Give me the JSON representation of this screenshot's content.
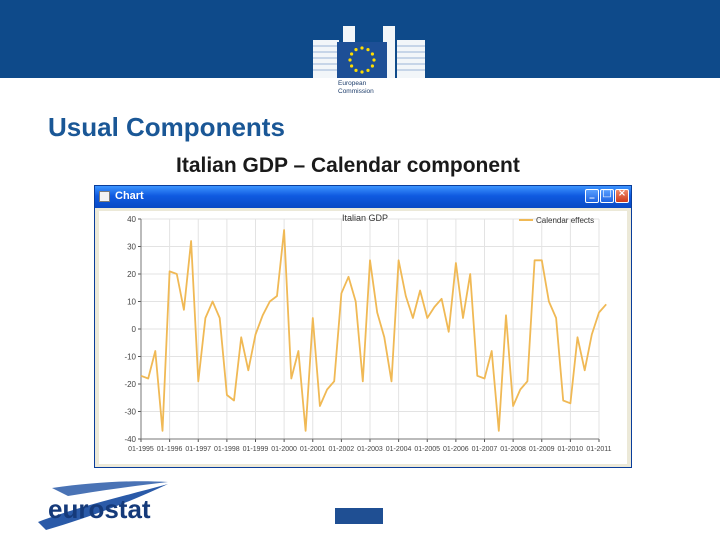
{
  "header": {
    "org_caption_line1": "European",
    "org_caption_line2": "Commission"
  },
  "slide": {
    "title": "Usual Components",
    "subtitle": "Italian GDP – Calendar component"
  },
  "window": {
    "title": "Chart"
  },
  "footer": {
    "logo_text": "eurostat",
    "logo_accent": "#2a5aa8"
  },
  "colors": {
    "banner": "#0e4a8a",
    "series": "#f0b955"
  },
  "chart_data": {
    "type": "line",
    "title": "Italian GDP",
    "legend": "top-right",
    "grid": true,
    "ylim": [
      -40,
      40
    ],
    "yticks": [
      "-40",
      "-30",
      "-20",
      "-10",
      "0",
      "10",
      "20",
      "30",
      "40"
    ],
    "xtick_labels": [
      "01-1995",
      "01-1996",
      "01-1997",
      "01-1998",
      "01-1999",
      "01-2000",
      "01-2001",
      "01-2002",
      "01-2003",
      "01-2004",
      "01-2005",
      "01-2006",
      "01-2007",
      "01-2008",
      "01-2009",
      "01-2010",
      "01-2011"
    ],
    "series": [
      {
        "name": "Calendar effects",
        "color": "#f0b955",
        "x_start": "01-1995",
        "values": [
          -17,
          -18,
          -8,
          -37,
          21,
          20,
          7,
          32,
          -19,
          4,
          10,
          4,
          -24,
          -26,
          -3,
          -15,
          -2,
          5,
          10,
          12,
          36,
          -18,
          -8,
          -37,
          4,
          -28,
          -22,
          -19,
          13,
          19,
          10,
          -19,
          25,
          6,
          -3,
          -19,
          25,
          12,
          4,
          14,
          4,
          8,
          11,
          -1,
          24,
          4,
          20,
          -17,
          -18,
          -8,
          -37,
          5,
          -28,
          -22,
          -19,
          25,
          25,
          10,
          4,
          -26,
          -27,
          -3,
          -15,
          -2,
          6,
          9
        ]
      }
    ]
  }
}
